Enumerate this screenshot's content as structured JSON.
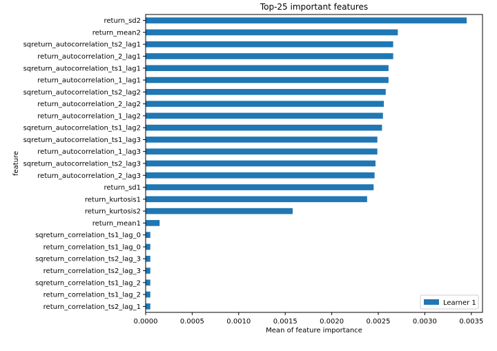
{
  "chart_data": {
    "type": "bar",
    "orientation": "horizontal",
    "title": "Top-25 important features",
    "xlabel": "Mean of feature importance",
    "ylabel": "feature",
    "xlim": [
      0,
      0.00362
    ],
    "xticks": [
      "0.0000",
      "0.0005",
      "0.0010",
      "0.0015",
      "0.0020",
      "0.0025",
      "0.0030",
      "0.0035"
    ],
    "xtick_values": [
      0,
      0.0005,
      0.001,
      0.0015,
      0.002,
      0.0025,
      0.003,
      0.0035
    ],
    "grid": false,
    "legend_position": "bottom-right",
    "categories": [
      "return_sd2",
      "return_mean2",
      "sqreturn_autocorrelation_ts2_lag1",
      "return_autocorrelation_2_lag1",
      "sqreturn_autocorrelation_ts1_lag1",
      "return_autocorrelation_1_lag1",
      "sqreturn_autocorrelation_ts2_lag2",
      "return_autocorrelation_2_lag2",
      "return_autocorrelation_1_lag2",
      "sqreturn_autocorrelation_ts1_lag2",
      "sqreturn_autocorrelation_ts1_lag3",
      "return_autocorrelation_1_lag3",
      "sqreturn_autocorrelation_ts2_lag3",
      "return_autocorrelation_2_lag3",
      "return_sd1",
      "return_kurtosis1",
      "return_kurtosis2",
      "return_mean1",
      "sqreturn_correlation_ts1_lag_0",
      "return_correlation_ts1_lag_0",
      "sqreturn_correlation_ts2_lag_3",
      "return_correlation_ts2_lag_3",
      "sqreturn_correlation_ts1_lag_2",
      "return_correlation_ts1_lag_2",
      "return_correlation_ts2_lag_1"
    ],
    "series": [
      {
        "name": "Learner 1",
        "color": "#1f77b4",
        "values": [
          0.00345,
          0.00271,
          0.00266,
          0.00266,
          0.00261,
          0.00261,
          0.00258,
          0.00256,
          0.00255,
          0.00254,
          0.00249,
          0.00249,
          0.00247,
          0.00246,
          0.00245,
          0.00238,
          0.00158,
          0.00015,
          5e-05,
          5e-05,
          5e-05,
          5e-05,
          5e-05,
          5e-05,
          5e-05
        ]
      }
    ]
  }
}
